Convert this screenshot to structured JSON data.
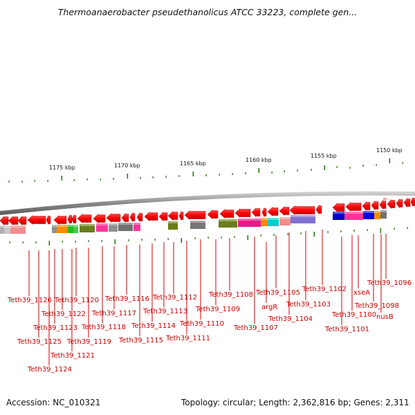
{
  "title": "Thermoanaerobacter pseudethanolicus ATCC 33223, complete gen...",
  "kbp_labels": [
    "1175 kbp",
    "1170 kbp",
    "1165 kbp",
    "1160 kbp",
    "1155 kbp",
    "1150 kbp"
  ],
  "gene_labels": [
    "Teth39_1126",
    "Teth39_1125",
    "Teth39_1124",
    "Teth39_1123",
    "Teth39_1122",
    "Teth39_1121",
    "Teth39_1120",
    "Teth39_1119",
    "Teth39_1118",
    "Teth39_1117",
    "Teth39_1116",
    "Teth39_1115",
    "Teth39_1114",
    "Teth39_1113",
    "Teth39_1112",
    "Teth39_1111",
    "Teth39_1110",
    "Teth39_1109",
    "Teth39_1108",
    "Teth39_1107",
    "argR",
    "Teth39_1105",
    "Teth39_1104",
    "Teth39_1103",
    "Teth39_1102",
    "Teth39_1101",
    "Teth39_1100",
    "xseA",
    "Teth39_1098",
    "nusB",
    "Teth39_1096"
  ],
  "footer": {
    "accession": "Accession: NC_010321",
    "topology": "Topology: circular; Length: 2,362,816 bp; Genes: 2,311"
  },
  "colors": {
    "gene_arrow": "#ff0000",
    "label": "#cc0000",
    "tick": "#2a7a12",
    "backbone": "#888888"
  }
}
